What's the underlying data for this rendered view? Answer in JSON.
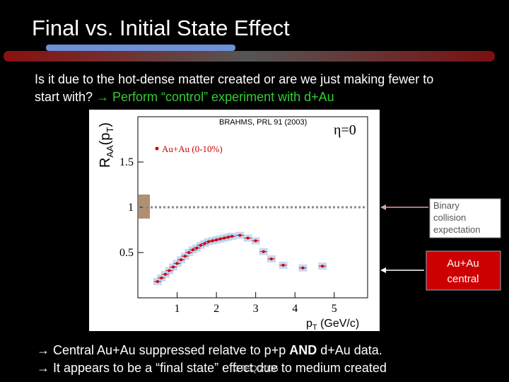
{
  "slide": {
    "title": "Final vs. Initial State Effect",
    "intro": [
      "Is it due to the hot-dense matter created or are we just making fewer to",
      "start with? ",
      "→ Perform “control” experiment with d+Au"
    ],
    "annotations": {
      "binary": [
        "Binary",
        "collision",
        "expectation"
      ],
      "central": [
        "Au+Au",
        "central"
      ]
    },
    "conclusions": [
      [
        "→ Central Au+Au suppressed relatve to p+p ",
        "AND",
        " d+Au data."
      ],
      [
        "→ It appears to be a “final state” effect due to medium created"
      ]
    ],
    "footer": "CTEQ 2006"
  },
  "chart_data": {
    "type": "scatter",
    "title": "BRAHMS, PRL 91 (2003)",
    "annotation": "η=0",
    "y_label": [
      "R",
      "AA",
      "(p",
      "T",
      ")"
    ],
    "x_label": [
      "p",
      "T",
      " (GeV/c)"
    ],
    "series": [
      {
        "name": "Au+Au (0-10%)",
        "color": "#cc0000",
        "x": [
          0.5,
          0.6,
          0.7,
          0.8,
          0.9,
          1.0,
          1.1,
          1.2,
          1.3,
          1.4,
          1.5,
          1.6,
          1.7,
          1.8,
          1.9,
          2.0,
          2.1,
          2.2,
          2.3,
          2.4,
          2.6,
          2.8,
          3.0,
          3.2,
          3.4,
          3.7,
          4.2,
          4.7
        ],
        "values": [
          0.18,
          0.22,
          0.26,
          0.3,
          0.34,
          0.38,
          0.42,
          0.46,
          0.5,
          0.53,
          0.55,
          0.58,
          0.6,
          0.62,
          0.63,
          0.64,
          0.65,
          0.66,
          0.67,
          0.68,
          0.69,
          0.66,
          0.63,
          0.51,
          0.43,
          0.36,
          0.33,
          0.35
        ]
      }
    ],
    "xlim": [
      0,
      5.85
    ],
    "ylim": [
      0,
      2
    ],
    "xticks": [
      1,
      2,
      3,
      4,
      5
    ],
    "yticks": [
      0.5,
      1,
      1.5
    ],
    "reference_line": 1
  }
}
